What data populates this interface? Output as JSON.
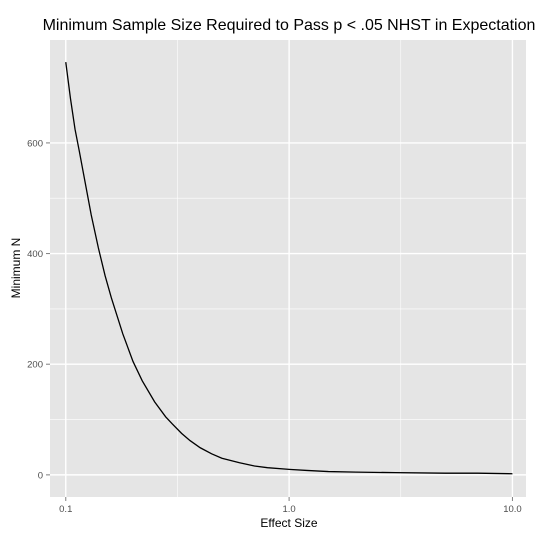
{
  "chart_data": {
    "type": "line",
    "title": "Minimum Sample Size Required to Pass p < .05 NHST in Expectation",
    "xlabel": "Effect Size",
    "ylabel": "Minimum N",
    "x_scale": "log10",
    "xlim": [
      0.085,
      11.5
    ],
    "ylim": [
      -40,
      786
    ],
    "x_ticks": [
      {
        "value": 0.1,
        "label": "0.1"
      },
      {
        "value": 1.0,
        "label": "1.0"
      },
      {
        "value": 10.0,
        "label": "10.0"
      }
    ],
    "y_ticks": [
      {
        "value": 0,
        "label": "0"
      },
      {
        "value": 200,
        "label": "200"
      },
      {
        "value": 400,
        "label": "400"
      },
      {
        "value": 600,
        "label": "600"
      }
    ],
    "grid": true,
    "background_color": "#e5e5e5",
    "grid_color": "#ffffff",
    "line_color": "#000000",
    "series": [
      {
        "x": [
          0.1,
          0.105,
          0.11,
          0.115,
          0.12,
          0.13,
          0.14,
          0.15,
          0.16,
          0.18,
          0.2,
          0.22,
          0.25,
          0.28,
          0.3,
          0.33,
          0.36,
          0.4,
          0.45,
          0.5,
          0.6,
          0.7,
          0.8,
          1.0,
          1.2,
          1.5,
          2.0,
          3.0,
          5.0,
          7.0,
          10.0
        ],
        "y": [
          746,
          680,
          625,
          585,
          545,
          470,
          410,
          360,
          320,
          255,
          205,
          170,
          132,
          105,
          92,
          75,
          62,
          49,
          38,
          30,
          22,
          16,
          13,
          10,
          8,
          6,
          5,
          4,
          3,
          3,
          2
        ]
      }
    ]
  }
}
